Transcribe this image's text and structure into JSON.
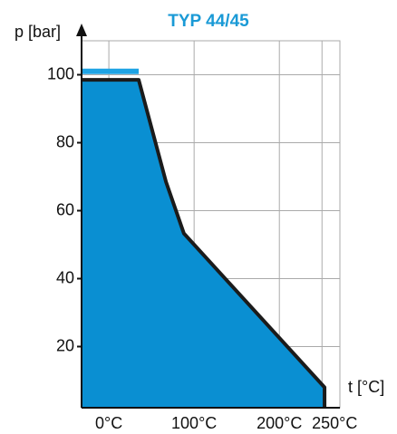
{
  "chart_data": {
    "type": "area",
    "title": "TYP 44/45",
    "ylabel": "p [bar]",
    "xlabel": "t [°C]",
    "x": [
      -32,
      35,
      67,
      88,
      253,
      253
    ],
    "series": [
      {
        "color": "#0a8fd2",
        "values": [
          98.5,
          98.5,
          68.5,
          53.3,
          8,
          2
        ]
      }
    ],
    "band": {
      "color": "#1ea3e4",
      "x": [
        -32,
        35
      ],
      "values": [
        101,
        101
      ]
    },
    "xlim": [
      -32,
      271
    ],
    "ylim": [
      2,
      110
    ],
    "xticks": [
      {
        "value": 0,
        "label": "0°C"
      },
      {
        "value": 100,
        "label": "100°C"
      },
      {
        "value": 200,
        "label": "200°C"
      },
      {
        "value": 250,
        "label": "250°C"
      }
    ],
    "yticks": [
      20,
      40,
      60,
      80,
      100
    ],
    "grid": true
  }
}
